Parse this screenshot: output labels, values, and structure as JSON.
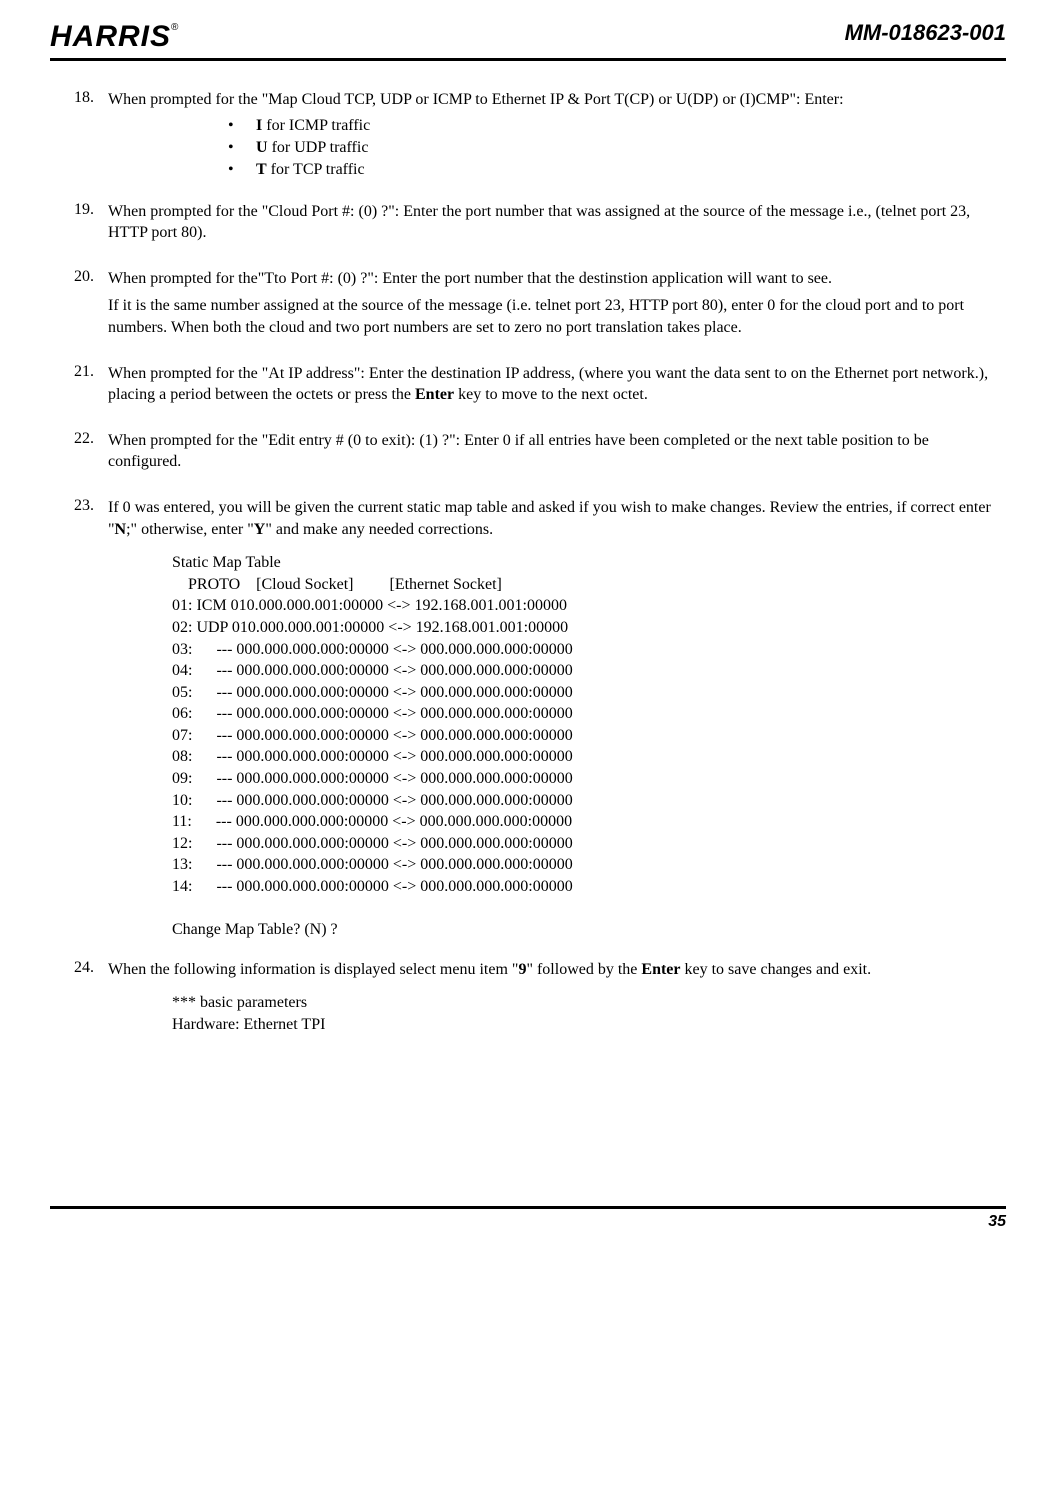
{
  "header": {
    "logo_text": "HARRIS",
    "logo_reg": "®",
    "doc_number": "MM-018623-001"
  },
  "steps": {
    "s18": {
      "num": "18.",
      "text": "When prompted for the \"Map Cloud TCP, UDP or ICMP to Ethernet IP & Port T(CP) or U(DP) or (I)CMP\":  Enter:",
      "b1_pre": "I",
      "b1_post": " for  ICMP traffic",
      "b2_pre": "U",
      "b2_post": " for UDP traffic",
      "b3_pre": "T",
      "b3_post": " for TCP traffic"
    },
    "s19": {
      "num": "19.",
      "text": "When prompted for the \"Cloud Port #:  (0) ?\":  Enter the port number that was assigned at the source of the message i.e., (telnet port 23, HTTP port 80)."
    },
    "s20": {
      "num": "20.",
      "text1": "When prompted for the\"Tto Port #:  (0) ?\":  Enter the port number that the destinstion application will want to see.",
      "text2": "If it is the same number assigned at the source of the message (i.e. telnet port 23, HTTP port 80), enter 0 for the cloud port and to port numbers.  When both the cloud and two port numbers are set to zero no port translation takes place."
    },
    "s21": {
      "num": "21.",
      "text_a": "When prompted for the \"At IP address\":  Enter the destination IP address, (where you want the data sent to on the Ethernet port network.), placing a period between the octets or press the ",
      "enter": "Enter",
      "text_b": " key to move to the next octet."
    },
    "s22": {
      "num": "22.",
      "text": "When prompted for the \"Edit entry # (0 to exit):  (1) ?\":   Enter 0 if all entries have been completed or the next table position to be configured."
    },
    "s23": {
      "num": "23.",
      "text_a": "If 0 was entered, you will be given the current static map table and asked if you wish to make changes.  Review the entries, if correct enter \"",
      "n": "N",
      "text_b": ";\"  otherwise, enter \"",
      "y": "Y",
      "text_c": "\" and make any needed corrections.",
      "table": "Static Map Table\n    PROTO    [Cloud Socket]         [Ethernet Socket]\n01: ICM 010.000.000.001:00000 <-> 192.168.001.001:00000\n02: UDP 010.000.000.001:00000 <-> 192.168.001.001:00000\n03:      --- 000.000.000.000:00000 <-> 000.000.000.000:00000\n04:      --- 000.000.000.000:00000 <-> 000.000.000.000:00000\n05:      --- 000.000.000.000:00000 <-> 000.000.000.000:00000\n06:      --- 000.000.000.000:00000 <-> 000.000.000.000:00000\n07:      --- 000.000.000.000:00000 <-> 000.000.000.000:00000\n08:      --- 000.000.000.000:00000 <-> 000.000.000.000:00000\n09:      --- 000.000.000.000:00000 <-> 000.000.000.000:00000\n10:      --- 000.000.000.000:00000 <-> 000.000.000.000:00000\n11:      --- 000.000.000.000:00000 <-> 000.000.000.000:00000\n12:      --- 000.000.000.000:00000 <-> 000.000.000.000:00000\n13:      --- 000.000.000.000:00000 <-> 000.000.000.000:00000\n14:      --- 000.000.000.000:00000 <-> 000.000.000.000:00000\n\nChange Map Table? (N) ?"
    },
    "s24": {
      "num": "24.",
      "text_a": "When the following information is displayed select menu item \"",
      "nine": "9",
      "text_b": "\" followed by the ",
      "enter": "Enter",
      "text_c": " key to save changes and exit.",
      "block": "*** basic parameters\nHardware: Ethernet TPI"
    }
  },
  "footer": {
    "page_num": "35"
  }
}
